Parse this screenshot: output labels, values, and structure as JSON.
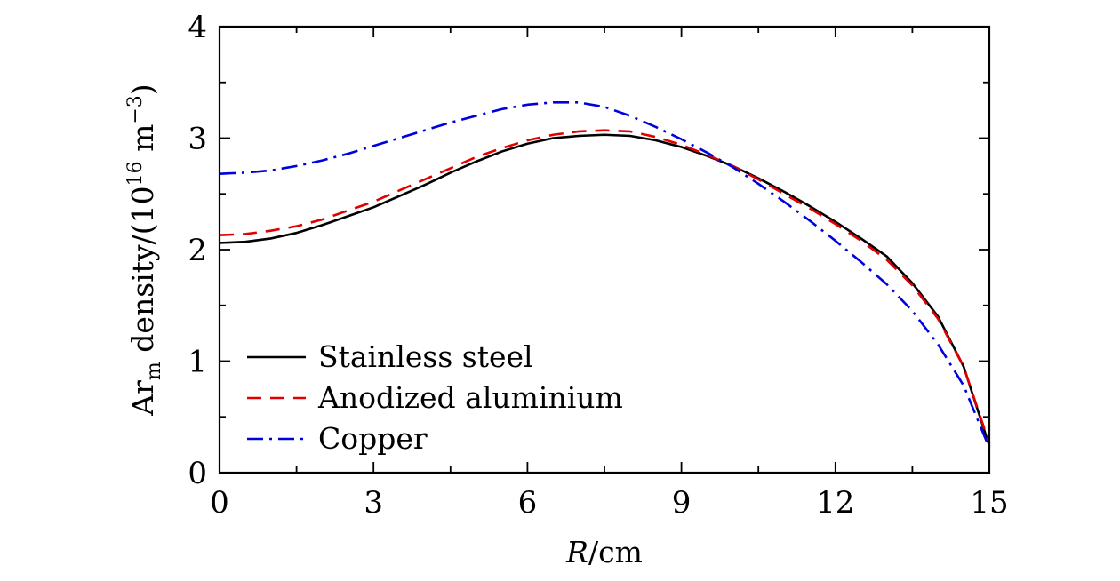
{
  "chart_data": {
    "type": "line",
    "xlabel_italic": "R",
    "xlabel_rest": "/cm",
    "ylabel_prefix": "Ar",
    "ylabel_sub": "m",
    "ylabel_mid": " density/(10",
    "ylabel_sup1": "16",
    "ylabel_m": " m",
    "ylabel_sup2": "−3",
    "ylabel_close": ")",
    "xlim": [
      0,
      15
    ],
    "ylim": [
      0,
      4
    ],
    "x_ticks": [
      0,
      3,
      6,
      9,
      12,
      15
    ],
    "x_tick_labels": [
      "0",
      "3",
      "6",
      "9",
      "12",
      "15"
    ],
    "y_ticks": [
      0,
      1,
      2,
      3,
      4
    ],
    "y_tick_labels": [
      "0",
      "1",
      "2",
      "3",
      "4"
    ],
    "grid": false,
    "legend_position": "lower-left",
    "series": [
      {
        "name": "Stainless steel",
        "color": "#000000",
        "style": "solid",
        "x": [
          0,
          0.5,
          1,
          1.5,
          2,
          2.5,
          3,
          3.5,
          4,
          4.5,
          5,
          5.5,
          6,
          6.5,
          7,
          7.5,
          8,
          8.5,
          9,
          9.5,
          10,
          10.5,
          11,
          11.5,
          12,
          12.5,
          13,
          13.5,
          14,
          14.5,
          15
        ],
        "y": [
          2.06,
          2.07,
          2.1,
          2.15,
          2.22,
          2.3,
          2.38,
          2.48,
          2.58,
          2.69,
          2.79,
          2.88,
          2.95,
          3.0,
          3.02,
          3.03,
          3.02,
          2.98,
          2.92,
          2.84,
          2.75,
          2.64,
          2.52,
          2.39,
          2.25,
          2.1,
          1.94,
          1.7,
          1.4,
          0.95,
          0.24
        ]
      },
      {
        "name": "Anodized aluminium",
        "color": "#e00000",
        "style": "dashed",
        "x": [
          0,
          0.5,
          1,
          1.5,
          2,
          2.5,
          3,
          3.5,
          4,
          4.5,
          5,
          5.5,
          6,
          6.5,
          7,
          7.5,
          8,
          8.5,
          9,
          9.5,
          10,
          10.5,
          11,
          11.5,
          12,
          12.5,
          13,
          13.5,
          14,
          14.5,
          15
        ],
        "y": [
          2.13,
          2.14,
          2.17,
          2.21,
          2.27,
          2.35,
          2.43,
          2.53,
          2.63,
          2.73,
          2.83,
          2.91,
          2.98,
          3.03,
          3.06,
          3.07,
          3.06,
          3.01,
          2.94,
          2.85,
          2.75,
          2.63,
          2.5,
          2.37,
          2.23,
          2.08,
          1.91,
          1.68,
          1.38,
          0.95,
          0.26
        ]
      },
      {
        "name": "Copper",
        "color": "#0000dd",
        "style": "dashdot",
        "x": [
          0,
          0.5,
          1,
          1.5,
          2,
          2.5,
          3,
          3.5,
          4,
          4.5,
          5,
          5.5,
          6,
          6.5,
          7,
          7.5,
          8,
          8.5,
          9,
          9.5,
          10,
          10.5,
          11,
          11.5,
          12,
          12.5,
          13,
          13.5,
          14,
          14.5,
          15
        ],
        "y": [
          2.68,
          2.69,
          2.71,
          2.75,
          2.8,
          2.86,
          2.93,
          3.0,
          3.07,
          3.14,
          3.2,
          3.26,
          3.3,
          3.32,
          3.32,
          3.28,
          3.2,
          3.1,
          2.99,
          2.87,
          2.74,
          2.59,
          2.43,
          2.26,
          2.08,
          1.89,
          1.69,
          1.45,
          1.15,
          0.78,
          0.22
        ]
      }
    ]
  }
}
